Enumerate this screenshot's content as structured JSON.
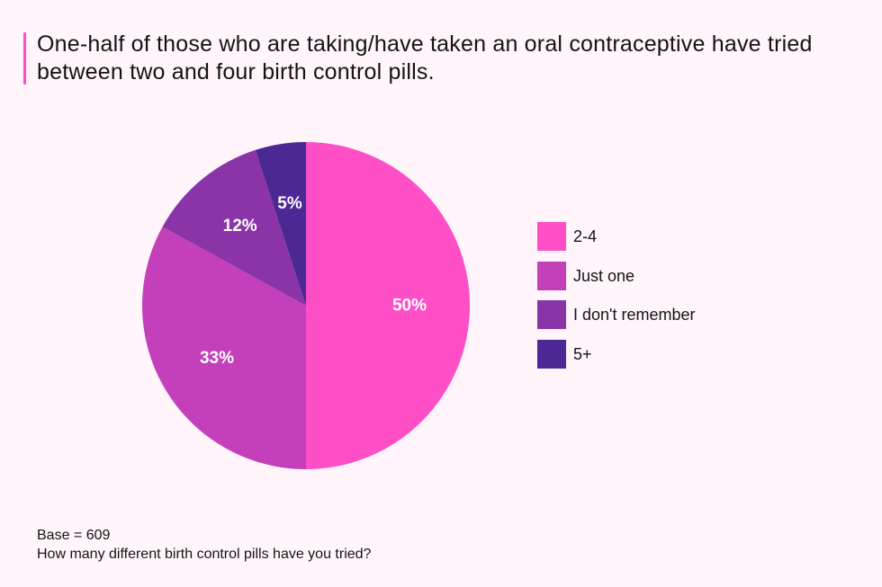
{
  "chart_data": {
    "type": "pie",
    "title": "One-half of those who are taking/have taken an oral contraceptive have tried between two and four birth control pills.",
    "categories": [
      "2-4",
      "Just one",
      "I don't remember",
      "5+"
    ],
    "values": [
      50,
      33,
      12,
      5
    ],
    "slice_labels": [
      "50%",
      "33%",
      "12%",
      "5%"
    ],
    "colors": [
      "#ff4fc6",
      "#c43fba",
      "#8b34a8",
      "#4b2893"
    ],
    "legend_position": "right"
  },
  "footer": {
    "base": "Base = 609",
    "question": "How many different birth control pills have you tried?"
  }
}
